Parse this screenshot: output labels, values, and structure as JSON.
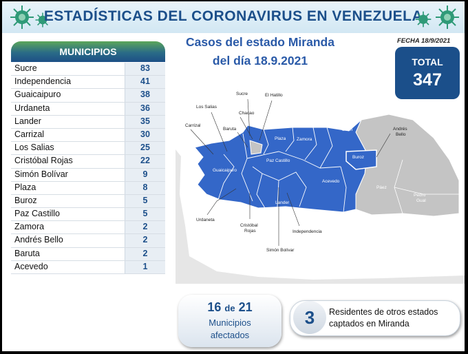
{
  "title": "ESTADÍSTICAS DEL CORONAVIRUS EN VENEZUELA",
  "date": "FECHA 18/9/2021",
  "headline_line1": "Casos del estado Miranda",
  "headline_line2": "del día 18.9.2021",
  "total_label": "TOTAL",
  "total_value": "347",
  "municipios_header": "MUNICIPIOS",
  "municipios": [
    {
      "name": "Sucre",
      "count": "83"
    },
    {
      "name": "Independencia",
      "count": "41"
    },
    {
      "name": "Guaicaipuro",
      "count": "38"
    },
    {
      "name": "Urdaneta",
      "count": "36"
    },
    {
      "name": "Lander",
      "count": "35"
    },
    {
      "name": "Carrizal",
      "count": "30"
    },
    {
      "name": "Los Salias",
      "count": "25"
    },
    {
      "name": "Cristóbal Rojas",
      "count": "22"
    },
    {
      "name": "Simón Bolívar",
      "count": "9"
    },
    {
      "name": "Plaza",
      "count": "8"
    },
    {
      "name": "Buroz",
      "count": "5"
    },
    {
      "name": "Paz Castillo",
      "count": "5"
    },
    {
      "name": "Zamora",
      "count": "2"
    },
    {
      "name": "Andrés Bello",
      "count": "2"
    },
    {
      "name": "Baruta",
      "count": "2"
    },
    {
      "name": "Acevedo",
      "count": "1"
    }
  ],
  "map_labels": {
    "sucre": "Sucre",
    "el_hatillo": "El Hatillo",
    "los_salias": "Los Salias",
    "chacao": "Chacao",
    "carrizal": "Carrizal",
    "baruta": "Baruta",
    "plaza": "Plaza",
    "zamora": "Zamora",
    "brion": "Brión",
    "andres_bello_1": "Andrés",
    "andres_bello_2": "Bello",
    "guaicaipuro": "Guaicaipuro",
    "paz_castillo": "Paz Castillo",
    "buroz": "Buroz",
    "acevedo": "Acevedo",
    "paez": "Páez",
    "pedro_gual_1": "Pedro",
    "pedro_gual_2": "Gual",
    "lander": "Lander",
    "urdaneta": "Urdaneta",
    "cristobal_rojas_1": "Cristóbal",
    "cristobal_rojas_2": "Rojas",
    "independencia": "Independencia",
    "simon_bolivar": "Simón Bolívar"
  },
  "affected_number": "16",
  "affected_of": "de",
  "affected_total": "21",
  "affected_line2": "Municipios",
  "affected_line3": "afectados",
  "residents_count": "3",
  "residents_text": "Residentes de otros estados captados en Miranda",
  "colors": {
    "affected": "#3467c8",
    "unaffected": "#c4c4c4",
    "brand": "#1c4f8a"
  }
}
